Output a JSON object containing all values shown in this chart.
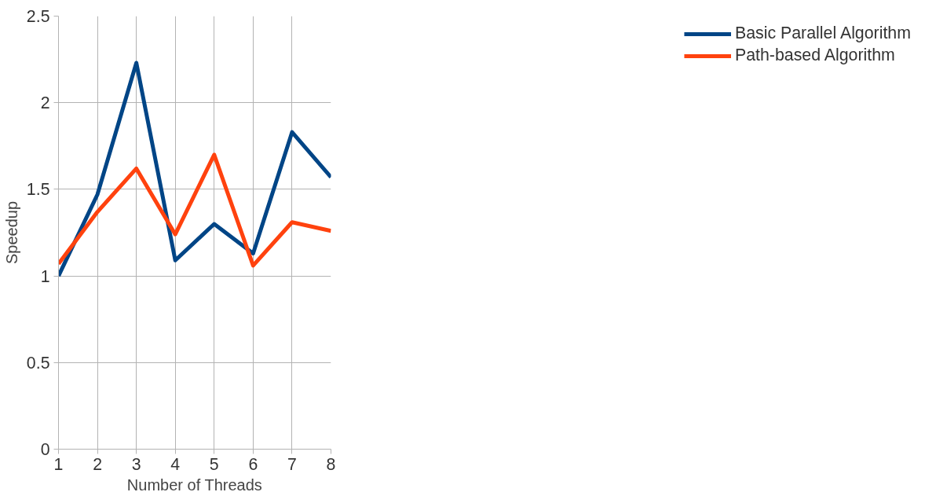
{
  "chart_data": {
    "type": "line",
    "xlabel": "Number of Threads",
    "ylabel": "Speedup",
    "x": [
      1,
      2,
      3,
      4,
      5,
      6,
      7,
      8
    ],
    "series": [
      {
        "name": "Basic Parallel Algorithm",
        "color": "#004586",
        "values": [
          1.0,
          1.47,
          2.23,
          1.09,
          1.3,
          1.13,
          1.83,
          1.57
        ]
      },
      {
        "name": "Path-based Algorithm",
        "color": "#ff420e",
        "values": [
          1.07,
          1.37,
          1.62,
          1.24,
          1.7,
          1.06,
          1.31,
          1.26
        ]
      }
    ],
    "xlim": [
      1,
      8
    ],
    "xticks": [
      1,
      2,
      3,
      4,
      5,
      6,
      7,
      8
    ],
    "ylim": [
      0,
      2.5
    ],
    "yticks": [
      0,
      0.5,
      1,
      1.5,
      2,
      2.5
    ],
    "grid": true,
    "legend": "right",
    "marker": "none",
    "line_style": "solid"
  }
}
